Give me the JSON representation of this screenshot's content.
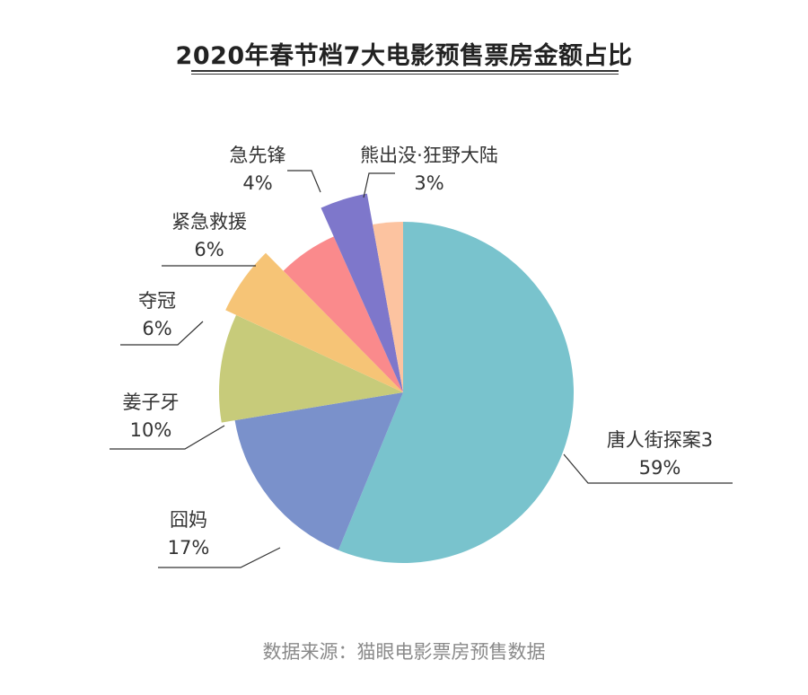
{
  "chart_data": {
    "type": "pie",
    "title": "2020年春节档7大电影预售票房金额占比",
    "slices": [
      {
        "label": "唐人街探案3",
        "value": 59,
        "value_label": "59%",
        "color": "#79C3CD"
      },
      {
        "label": "囧妈",
        "value": 17,
        "value_label": "17%",
        "color": "#7A91CB"
      },
      {
        "label": "姜子牙",
        "value": 10,
        "value_label": "10%",
        "color": "#C7CB7A"
      },
      {
        "label": "夺冠",
        "value": 6,
        "value_label": "6%",
        "color": "#F6C476"
      },
      {
        "label": "紧急救援",
        "value": 6,
        "value_label": "6%",
        "color": "#FA8A8C"
      },
      {
        "label": "急先锋",
        "value": 4,
        "value_label": "4%",
        "color": "#7E77CB"
      },
      {
        "label": "熊出没·狂野大陆",
        "value": 3,
        "value_label": "3%",
        "color": "#FCC3A0"
      }
    ],
    "start": "12 o'clock",
    "direction": "clockwise",
    "legend": "none"
  },
  "source": "数据来源：猫眼电影票房预售数据"
}
